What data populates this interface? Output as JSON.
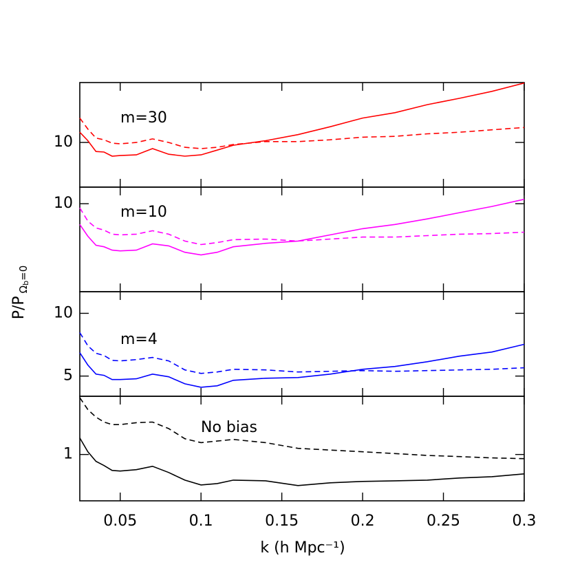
{
  "chart_data": [
    {
      "type": "line",
      "annotation": "m=30",
      "log_y": true,
      "x": [
        0.025,
        0.03,
        0.035,
        0.04,
        0.045,
        0.05,
        0.06,
        0.07,
        0.08,
        0.09,
        0.1,
        0.11,
        0.12,
        0.14,
        0.16,
        0.18,
        0.2,
        0.22,
        0.24,
        0.26,
        0.28,
        0.3
      ],
      "xlim": [
        0.025,
        0.3
      ],
      "xticks": [
        0.05,
        0.1,
        0.15,
        0.2,
        0.25,
        0.3
      ],
      "ylim": [
        6.1,
        19.4
      ],
      "yticks": [
        10
      ],
      "series": [
        {
          "color": "#ff0000",
          "dash": false,
          "values": [
            11.2,
            10.2,
            9.05,
            8.99,
            8.59,
            8.65,
            8.72,
            9.34,
            8.78,
            8.59,
            8.72,
            9.19,
            9.7,
            10.2,
            10.9,
            11.9,
            13.1,
            13.9,
            15.2,
            16.3,
            17.6,
            19.3
          ]
        },
        {
          "color": "#ff0000",
          "dash": true,
          "values": [
            13.1,
            11.6,
            10.5,
            10.3,
            9.92,
            9.85,
            10,
            10.4,
            10,
            9.48,
            9.34,
            9.48,
            9.77,
            10.1,
            10.1,
            10.3,
            10.6,
            10.7,
            11.0,
            11.2,
            11.5,
            11.8
          ]
        }
      ]
    },
    {
      "type": "line",
      "annotation": "m=10",
      "log_y": true,
      "x": [
        0.025,
        0.03,
        0.035,
        0.04,
        0.045,
        0.05,
        0.06,
        0.07,
        0.08,
        0.09,
        0.1,
        0.11,
        0.12,
        0.14,
        0.16,
        0.18,
        0.2,
        0.22,
        0.24,
        0.26,
        0.28,
        0.3
      ],
      "xlim": [
        0.025,
        0.3
      ],
      "xticks": [
        0.05,
        0.1,
        0.15,
        0.2,
        0.25,
        0.3
      ],
      "ylim": [
        3.8,
        12
      ],
      "yticks": [
        10
      ],
      "series": [
        {
          "color": "#ff00ff",
          "dash": false,
          "values": [
            7.96,
            6.99,
            6.33,
            6.23,
            6.0,
            5.95,
            6.0,
            6.43,
            6.29,
            5.86,
            5.69,
            5.86,
            6.23,
            6.47,
            6.63,
            7.1,
            7.6,
            7.96,
            8.46,
            9.06,
            9.7,
            10.5
          ]
        },
        {
          "color": "#ff00ff",
          "dash": true,
          "values": [
            9.55,
            8.26,
            7.66,
            7.48,
            7.15,
            7.1,
            7.15,
            7.43,
            7.15,
            6.63,
            6.38,
            6.52,
            6.73,
            6.78,
            6.63,
            6.78,
            6.93,
            6.93,
            7.04,
            7.15,
            7.2,
            7.31
          ]
        }
      ]
    },
    {
      "type": "line",
      "annotation": "m=4",
      "log_y": true,
      "x": [
        0.025,
        0.03,
        0.035,
        0.04,
        0.045,
        0.05,
        0.06,
        0.07,
        0.08,
        0.09,
        0.1,
        0.11,
        0.12,
        0.14,
        0.16,
        0.18,
        0.2,
        0.22,
        0.24,
        0.26,
        0.28,
        0.3
      ],
      "xlim": [
        0.025,
        0.3
      ],
      "xticks": [
        0.05,
        0.1,
        0.15,
        0.2,
        0.25,
        0.3
      ],
      "ylim": [
        4,
        12.7
      ],
      "yticks": [
        5,
        10
      ],
      "series": [
        {
          "color": "#0000ff",
          "dash": false,
          "values": [
            6.47,
            5.65,
            5.11,
            5.04,
            4.81,
            4.81,
            4.85,
            5.11,
            4.96,
            4.59,
            4.42,
            4.49,
            4.77,
            4.88,
            4.92,
            5.11,
            5.39,
            5.56,
            5.86,
            6.23,
            6.52,
            7.1
          ]
        },
        {
          "color": "#0000ff",
          "dash": true,
          "values": [
            8.08,
            6.99,
            6.43,
            6.28,
            5.95,
            5.91,
            6.0,
            6.14,
            5.91,
            5.35,
            5.15,
            5.23,
            5.39,
            5.35,
            5.23,
            5.27,
            5.31,
            5.27,
            5.31,
            5.35,
            5.39,
            5.48
          ]
        }
      ]
    },
    {
      "type": "line",
      "annotation": "No bias",
      "log_y": true,
      "x": [
        0.025,
        0.03,
        0.035,
        0.04,
        0.045,
        0.05,
        0.06,
        0.07,
        0.08,
        0.09,
        0.1,
        0.11,
        0.12,
        0.14,
        0.16,
        0.18,
        0.2,
        0.22,
        0.24,
        0.26,
        0.28,
        0.3
      ],
      "xlim": [
        0.025,
        0.3
      ],
      "xticks": [
        0.05,
        0.1,
        0.15,
        0.2,
        0.25,
        0.3
      ],
      "ylim": [
        0.6,
        1.9
      ],
      "yticks": [
        1
      ],
      "x_label": "k (h Mpc⁻¹)",
      "y_label_parts": [
        "P/P",
        "Ω",
        "b",
        "=0"
      ],
      "series": [
        {
          "color": "#000000",
          "dash": false,
          "values": [
            1.2,
            1.03,
            0.927,
            0.885,
            0.839,
            0.833,
            0.846,
            0.878,
            0.82,
            0.754,
            0.715,
            0.726,
            0.754,
            0.748,
            0.71,
            0.732,
            0.743,
            0.748,
            0.754,
            0.772,
            0.783,
            0.808
          ]
        },
        {
          "color": "#000000",
          "dash": true,
          "values": [
            1.87,
            1.64,
            1.51,
            1.43,
            1.39,
            1.39,
            1.42,
            1.43,
            1.33,
            1.19,
            1.14,
            1.16,
            1.18,
            1.14,
            1.07,
            1.05,
            1.03,
            1.01,
            0.99,
            0.977,
            0.963,
            0.955
          ]
        }
      ]
    }
  ]
}
